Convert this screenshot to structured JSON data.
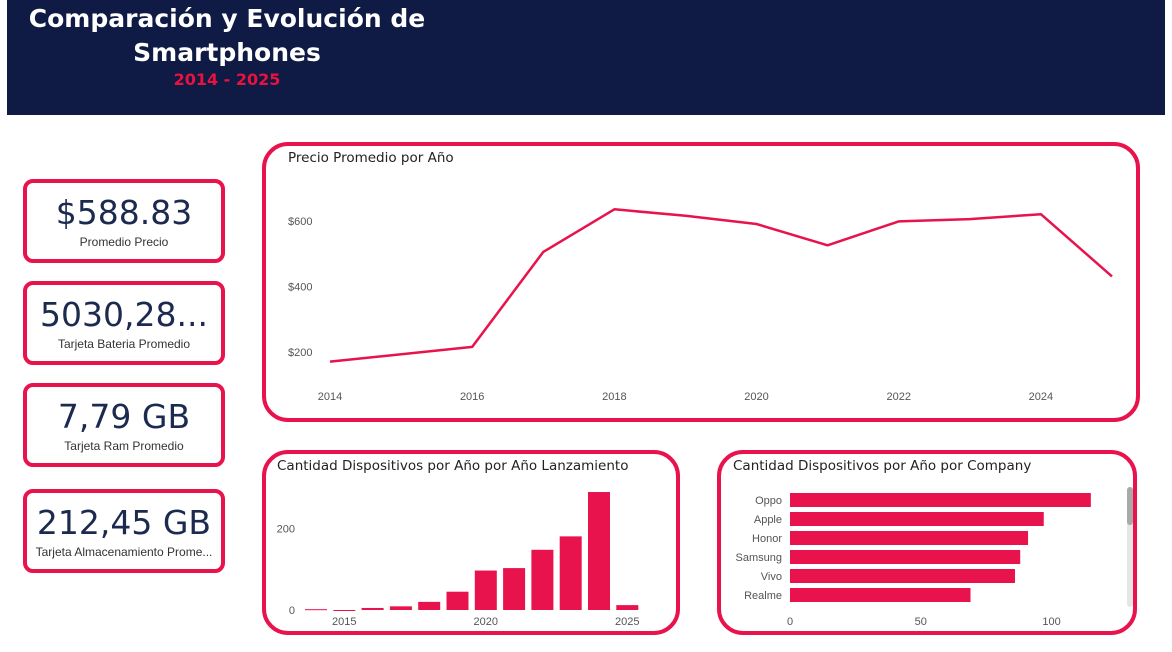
{
  "header": {
    "title": "Comparación y Evolución de Smartphones",
    "years": "2014 - 2025"
  },
  "kpis": [
    {
      "value": "$588.83",
      "label": "Promedio Precio"
    },
    {
      "value": "5030,28...",
      "label": "Tarjeta Bateria Promedio"
    },
    {
      "value": "7,79 GB",
      "label": "Tarjeta Ram Promedio"
    },
    {
      "value": "212,45 GB",
      "label": "Tarjeta Almacenamiento Prome..."
    }
  ],
  "colors": {
    "accent": "#e8124c",
    "header_bg": "#0f1a45",
    "kpi_text": "#1b2a4e"
  },
  "chart_data": [
    {
      "type": "line",
      "title": "Precio Promedio por Año",
      "x": [
        2014,
        2016,
        2017,
        2018,
        2019,
        2020,
        2021,
        2022,
        2023,
        2024,
        2025
      ],
      "series": [
        {
          "values": [
            170,
            215,
            505,
            635,
            615,
            590,
            525,
            598,
            605,
            620,
            430
          ]
        }
      ],
      "xticks": [
        "2014",
        "2016",
        "2018",
        "2020",
        "2022",
        "2024"
      ],
      "yticks": [
        "$200",
        "$400",
        "$600"
      ],
      "xlim": [
        2014,
        2025
      ],
      "ylim": [
        120,
        700
      ],
      "grid": false
    },
    {
      "type": "bar",
      "title": "Cantidad Dispositivos por Año por Año Lanzamiento",
      "categories": [
        2014,
        2015,
        2016,
        2017,
        2018,
        2019,
        2020,
        2021,
        2022,
        2023,
        2024,
        2025
      ],
      "values": [
        2,
        0,
        5,
        9,
        20,
        45,
        97,
        103,
        148,
        181,
        290,
        12
      ],
      "xticks": [
        "2015",
        "2020",
        "2025"
      ],
      "yticks": [
        "0",
        "200"
      ],
      "ylim": [
        0,
        295
      ]
    },
    {
      "type": "bar",
      "orientation": "horizontal",
      "title": "Cantidad Dispositivos por Año por Company",
      "categories": [
        "Oppo",
        "Apple",
        "Honor",
        "Samsung",
        "Vivo",
        "Realme"
      ],
      "values": [
        115,
        97,
        91,
        88,
        86,
        69
      ],
      "xticks": [
        "0",
        "50",
        "100"
      ],
      "xlim": [
        0,
        125
      ]
    }
  ]
}
